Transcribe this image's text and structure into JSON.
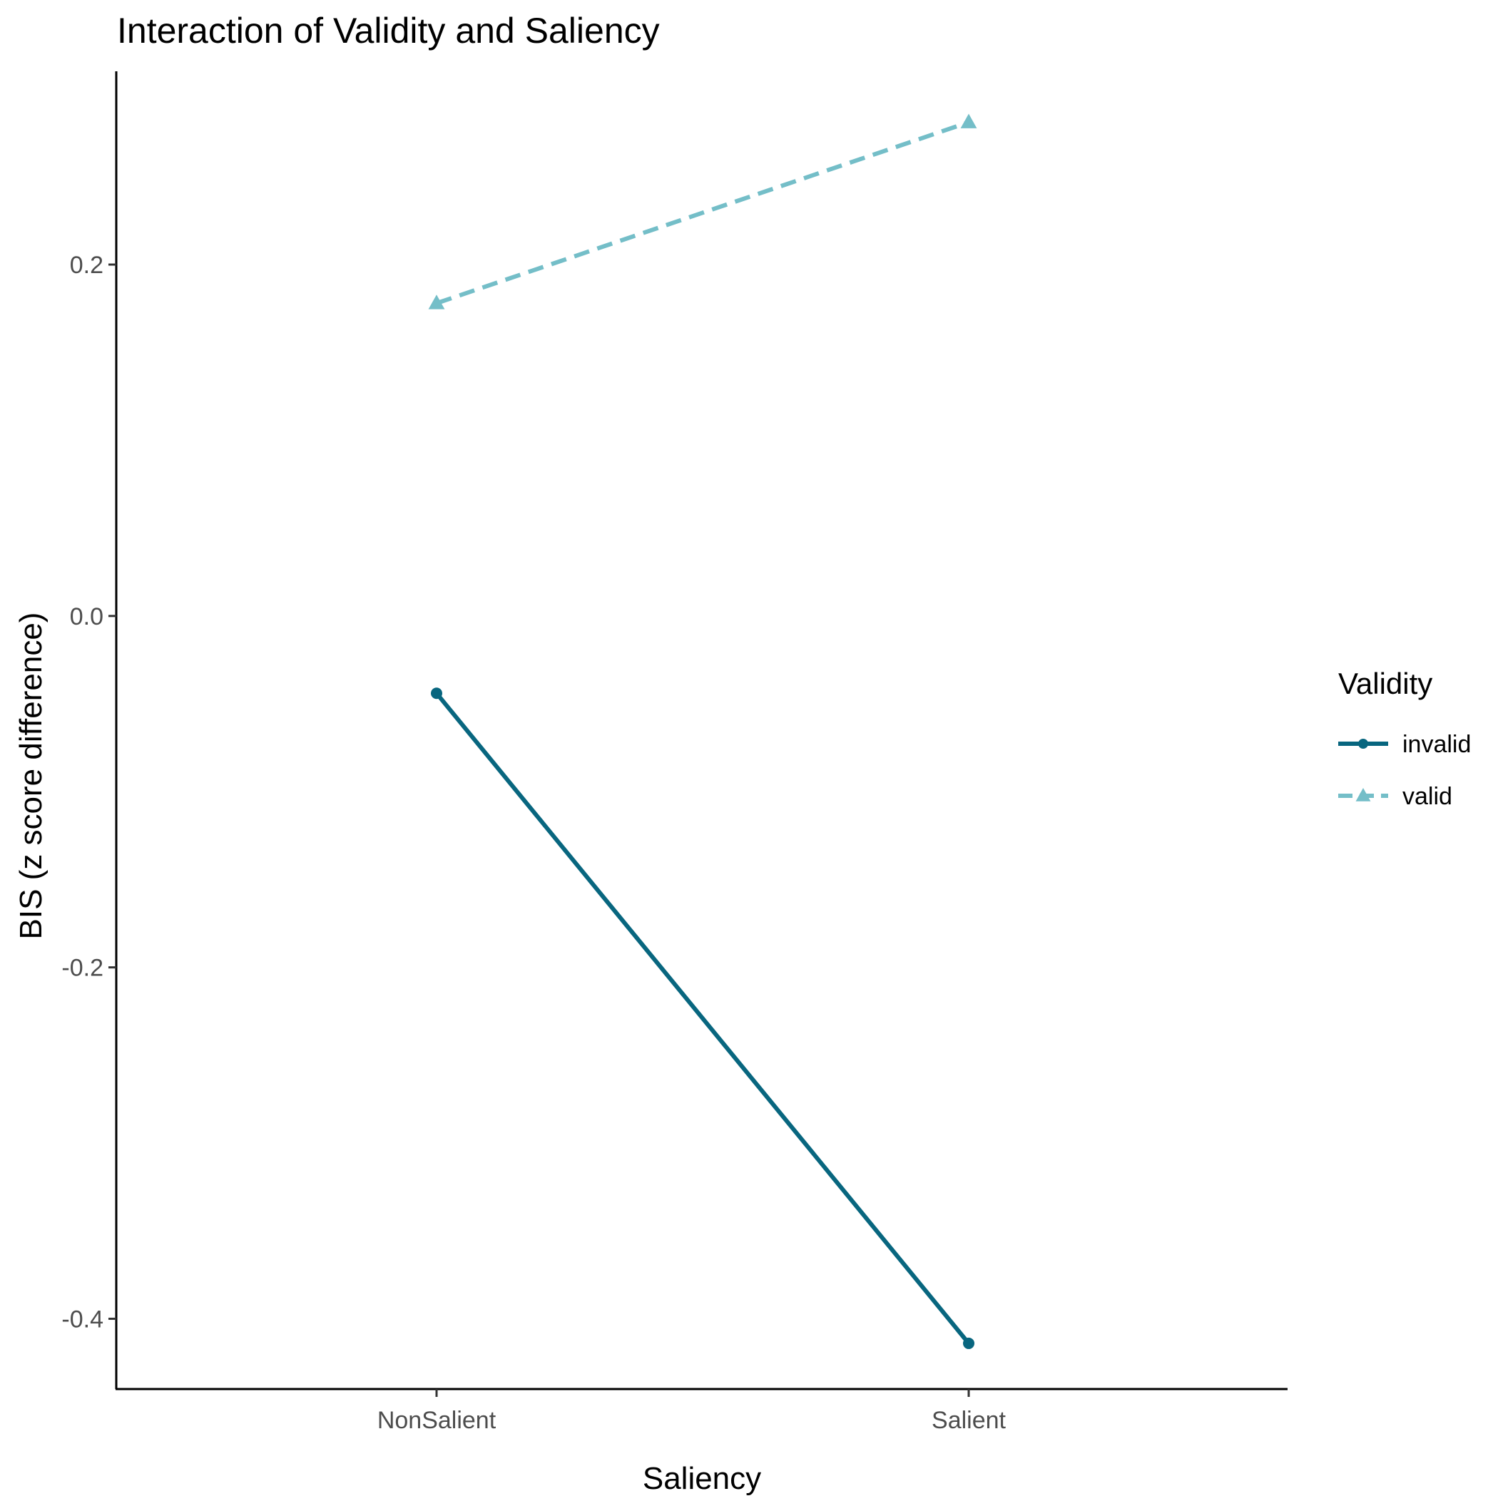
{
  "chart_data": {
    "type": "line",
    "title": "Interaction of Validity and Saliency",
    "xlabel": "Saliency",
    "ylabel": "BIS (z score difference)",
    "categories": [
      "NonSalient",
      "Salient"
    ],
    "ylim": [
      -0.44,
      0.31
    ],
    "yticks": [
      {
        "value": 0.2,
        "label": "0.2"
      },
      {
        "value": 0.0,
        "label": "0.0"
      },
      {
        "value": -0.2,
        "label": "-0.2"
      },
      {
        "value": -0.4,
        "label": "-0.4"
      }
    ],
    "grid": false,
    "legend": {
      "title": "Validity",
      "position": "right"
    },
    "series": [
      {
        "name": "invalid",
        "values": [
          -0.044,
          -0.414
        ],
        "color": "#08667f",
        "dash": "solid",
        "marker": "circle"
      },
      {
        "name": "valid",
        "values": [
          0.178,
          0.281
        ],
        "color": "#74bec8",
        "dash": "dashed",
        "marker": "triangle"
      }
    ]
  }
}
